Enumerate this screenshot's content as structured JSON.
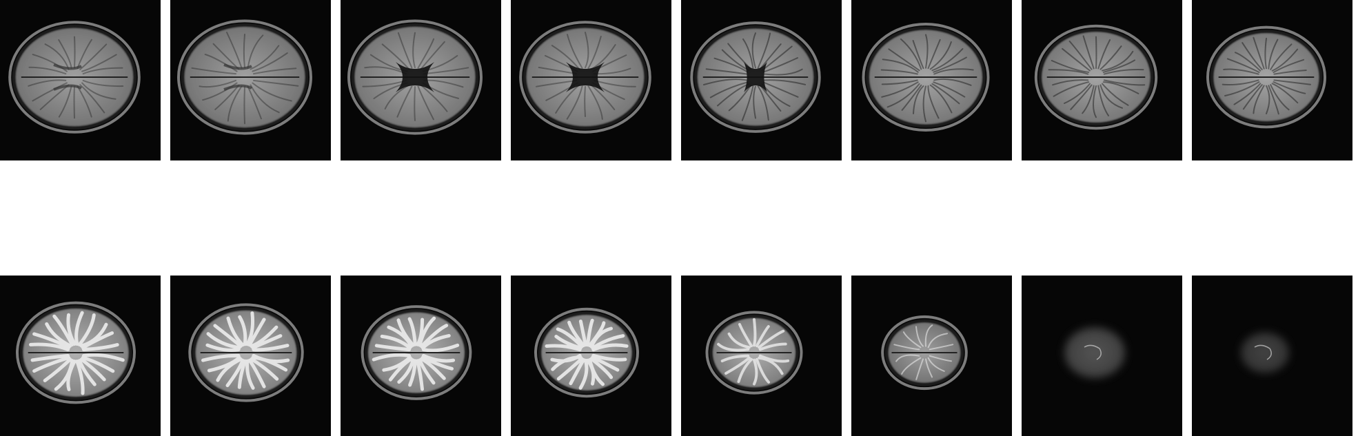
{
  "grid": {
    "rows": 2,
    "cols": 8,
    "slices": [
      {
        "row": 0,
        "level": "basal",
        "ventricles": "frontal-horns",
        "gyri": "faint",
        "brightness": 0.72,
        "extent": 0.78
      },
      {
        "row": 0,
        "level": "basal",
        "ventricles": "third-ventricle",
        "gyri": "faint",
        "brightness": 0.72,
        "extent": 0.8
      },
      {
        "row": 0,
        "level": "ventricular",
        "ventricles": "butterfly",
        "gyri": "faint",
        "brightness": 0.75,
        "extent": 0.8
      },
      {
        "row": 0,
        "level": "ventricular",
        "ventricles": "butterfly",
        "gyri": "faint",
        "brightness": 0.76,
        "extent": 0.78
      },
      {
        "row": 0,
        "level": "ventricular",
        "ventricles": "body",
        "gyri": "light",
        "brightness": 0.76,
        "extent": 0.77
      },
      {
        "row": 0,
        "level": "supraventricular",
        "ventricles": "none",
        "gyri": "light",
        "brightness": 0.77,
        "extent": 0.75
      },
      {
        "row": 0,
        "level": "supraventricular",
        "ventricles": "none",
        "gyri": "light",
        "brightness": 0.78,
        "extent": 0.72
      },
      {
        "row": 0,
        "level": "supraventricular",
        "ventricles": "none",
        "gyri": "light",
        "brightness": 0.78,
        "extent": 0.7
      },
      {
        "row": 1,
        "level": "high-convexity",
        "ventricles": "none",
        "gyri": "bright",
        "brightness": 0.95,
        "extent": 0.7
      },
      {
        "row": 1,
        "level": "high-convexity",
        "ventricles": "none",
        "gyri": "bright",
        "brightness": 0.95,
        "extent": 0.67
      },
      {
        "row": 1,
        "level": "high-convexity",
        "ventricles": "none",
        "gyri": "bright",
        "brightness": 0.95,
        "extent": 0.64
      },
      {
        "row": 1,
        "level": "vertex",
        "ventricles": "none",
        "gyri": "bright",
        "brightness": 0.95,
        "extent": 0.6
      },
      {
        "row": 1,
        "level": "vertex",
        "ventricles": "none",
        "gyri": "sparse",
        "brightness": 0.9,
        "extent": 0.55
      },
      {
        "row": 1,
        "level": "vertex",
        "ventricles": "none",
        "gyri": "faint",
        "brightness": 0.7,
        "extent": 0.48
      },
      {
        "row": 1,
        "level": "vertex",
        "ventricles": "none",
        "gyri": "haze",
        "brightness": 0.55,
        "extent": 0.4
      },
      {
        "row": 1,
        "level": "vertex",
        "ventricles": "none",
        "gyri": "haze",
        "brightness": 0.45,
        "extent": 0.32
      }
    ]
  },
  "colors": {
    "background": "#ffffff",
    "tile": "#060606",
    "skull_rim": "#9a9a9a",
    "brain": "#8c8c8c",
    "white_matter_gyri": "#e8e8e8",
    "csf": "#111111"
  }
}
